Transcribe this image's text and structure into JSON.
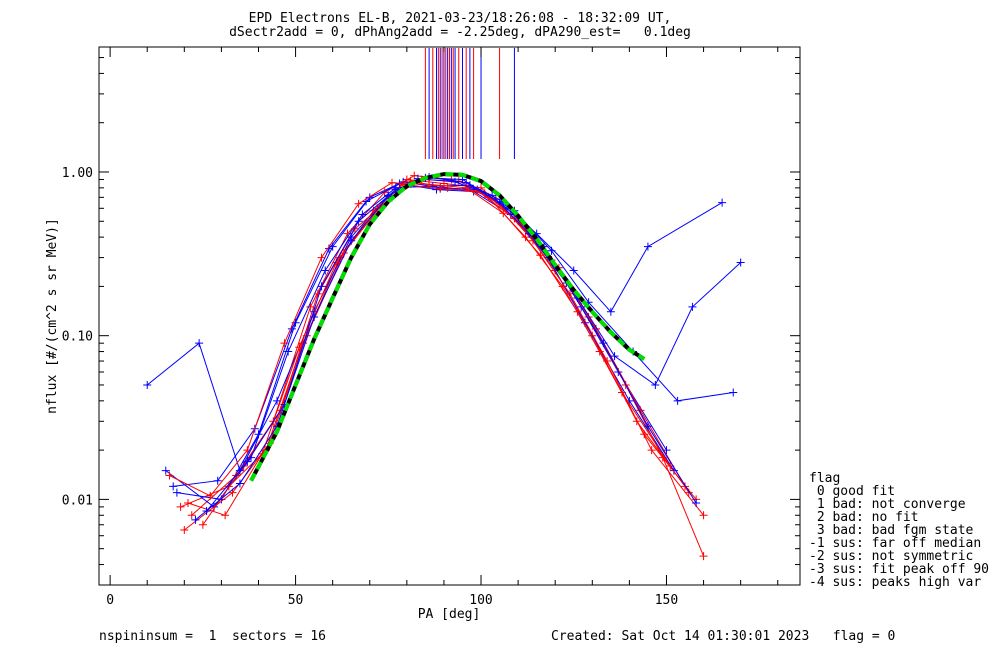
{
  "title_line1": "EPD Electrons EL-B, 2021-03-23/18:26:08 - 18:32:09 UT,",
  "title_line2": "dSectr2add = 0, dPhAng2add = -2.25deg, dPA290_est=   0.1deg",
  "footer_left": "nspininsum =  1  sectors = 16",
  "footer_right": "Created: Sat Oct 14 01:30:01 2023   flag = 0",
  "legend": {
    "title": "flag",
    "items": [
      " 0 good fit",
      " 1 bad: not converge",
      " 2 bad: no fit",
      " 3 bad: bad fgm state",
      "-1 sus: far off median",
      "-2 sus: not symmetric",
      "-3 sus: fit peak off 90",
      "-4 sus: peaks high var"
    ]
  },
  "colors": {
    "spin_a": "#ff0000",
    "spin_b": "#0000ff",
    "fit_green": "#00e000",
    "fit_black": "#000000"
  },
  "chart_data": {
    "type": "line",
    "xlabel": "PA [deg]",
    "ylabel": "nflux [#/(cm^2 s sr MeV)]",
    "xlim": [
      -3,
      186
    ],
    "ylim": [
      0.003,
      5.8
    ],
    "yscale": "log",
    "xticks": [
      0,
      50,
      100,
      150
    ],
    "xtick_labels": [
      "0",
      "50",
      "100",
      "150"
    ],
    "yticks": [
      0.01,
      0.1,
      1.0
    ],
    "ytick_labels": [
      "0.01",
      "0.10",
      "1.00"
    ],
    "fit_curve": {
      "x": [
        38,
        45,
        50,
        55,
        60,
        65,
        70,
        75,
        80,
        85,
        90,
        95,
        100,
        105,
        110,
        115,
        120,
        125,
        130,
        135,
        140,
        144
      ],
      "y": [
        0.013,
        0.026,
        0.05,
        0.095,
        0.17,
        0.3,
        0.48,
        0.66,
        0.82,
        0.92,
        0.97,
        0.96,
        0.88,
        0.72,
        0.54,
        0.39,
        0.27,
        0.19,
        0.14,
        0.105,
        0.082,
        0.072
      ]
    },
    "series": [
      {
        "x": [
          19,
          32,
          42,
          52,
          62,
          72,
          80,
          90,
          100,
          110,
          120,
          130,
          142,
          155
        ],
        "y": [
          0.009,
          0.012,
          0.02,
          0.09,
          0.3,
          0.6,
          0.9,
          0.85,
          0.8,
          0.5,
          0.25,
          0.1,
          0.03,
          0.012
        ]
      },
      {
        "x": [
          18,
          30,
          40,
          50,
          60,
          70,
          78,
          88,
          98,
          108,
          118,
          128,
          140,
          152
        ],
        "y": [
          0.011,
          0.01,
          0.025,
          0.12,
          0.35,
          0.7,
          0.85,
          0.78,
          0.76,
          0.55,
          0.3,
          0.12,
          0.04,
          0.015
        ]
      },
      {
        "x": [
          22,
          34,
          44,
          54,
          64,
          74,
          82,
          92,
          102,
          112,
          122,
          132,
          144,
          158
        ],
        "y": [
          0.008,
          0.014,
          0.03,
          0.15,
          0.42,
          0.75,
          0.95,
          0.9,
          0.7,
          0.4,
          0.2,
          0.08,
          0.025,
          0.01
        ]
      },
      {
        "x": [
          15,
          28,
          38,
          48,
          58,
          68,
          77,
          87,
          97,
          107,
          117,
          127,
          137,
          150
        ],
        "y": [
          0.015,
          0.009,
          0.018,
          0.08,
          0.25,
          0.55,
          0.8,
          0.82,
          0.83,
          0.6,
          0.35,
          0.15,
          0.06,
          0.02
        ]
      },
      {
        "x": [
          25,
          36,
          46,
          56,
          66,
          76,
          84,
          94,
          104,
          114,
          124,
          134,
          146,
          160
        ],
        "y": [
          0.007,
          0.016,
          0.035,
          0.18,
          0.45,
          0.7,
          0.9,
          0.88,
          0.68,
          0.38,
          0.18,
          0.07,
          0.02,
          0.008
        ]
      },
      {
        "x": [
          10,
          24,
          35,
          45,
          55,
          65,
          75,
          85,
          95,
          105,
          115,
          125,
          135,
          145,
          165
        ],
        "y": [
          0.05,
          0.09,
          0.015,
          0.04,
          0.14,
          0.4,
          0.72,
          0.92,
          0.9,
          0.65,
          0.42,
          0.25,
          0.14,
          0.35,
          0.65
        ]
      },
      {
        "x": [
          20,
          33,
          43,
          53,
          63,
          73,
          81,
          91,
          101,
          111,
          121,
          131,
          143,
          156
        ],
        "y": [
          0.0065,
          0.011,
          0.022,
          0.1,
          0.32,
          0.62,
          0.88,
          0.8,
          0.74,
          0.48,
          0.26,
          0.11,
          0.035,
          0.011
        ]
      },
      {
        "x": [
          17,
          29,
          39,
          49,
          59,
          69,
          79,
          89,
          99,
          109,
          119,
          129,
          141,
          153,
          168
        ],
        "y": [
          0.012,
          0.013,
          0.027,
          0.11,
          0.34,
          0.66,
          0.87,
          0.8,
          0.78,
          0.58,
          0.33,
          0.16,
          0.08,
          0.04,
          0.045
        ]
      },
      {
        "x": [
          21,
          31,
          41,
          51,
          61,
          71,
          79,
          89,
          99,
          109,
          119,
          129,
          139,
          149,
          160
        ],
        "y": [
          0.0095,
          0.008,
          0.019,
          0.085,
          0.28,
          0.58,
          0.84,
          0.79,
          0.77,
          0.52,
          0.29,
          0.13,
          0.05,
          0.018,
          0.0045
        ]
      },
      {
        "x": [
          26,
          37,
          47,
          57,
          67,
          77,
          86,
          96,
          106,
          116,
          126,
          136,
          147,
          157,
          170
        ],
        "y": [
          0.0085,
          0.017,
          0.038,
          0.2,
          0.5,
          0.78,
          0.93,
          0.86,
          0.66,
          0.36,
          0.17,
          0.075,
          0.05,
          0.15,
          0.28
        ]
      },
      {
        "x": [
          16,
          27,
          37,
          47,
          57,
          67,
          76,
          86,
          96,
          106,
          116,
          126,
          138,
          151
        ],
        "y": [
          0.014,
          0.0105,
          0.02,
          0.09,
          0.3,
          0.64,
          0.86,
          0.84,
          0.8,
          0.56,
          0.31,
          0.14,
          0.045,
          0.016
        ]
      },
      {
        "x": [
          23,
          35,
          45,
          55,
          65,
          75,
          83,
          93,
          103,
          113,
          123,
          133,
          145,
          158
        ],
        "y": [
          0.0075,
          0.0125,
          0.028,
          0.13,
          0.38,
          0.71,
          0.91,
          0.87,
          0.72,
          0.42,
          0.21,
          0.09,
          0.028,
          0.0095
        ]
      }
    ],
    "vertical_lines_x": [
      85,
      86,
      87,
      88,
      88.5,
      89,
      89.5,
      90,
      90.5,
      91,
      91.5,
      92,
      92.5,
      93,
      94,
      95,
      96,
      97,
      98,
      100,
      105,
      109
    ]
  }
}
